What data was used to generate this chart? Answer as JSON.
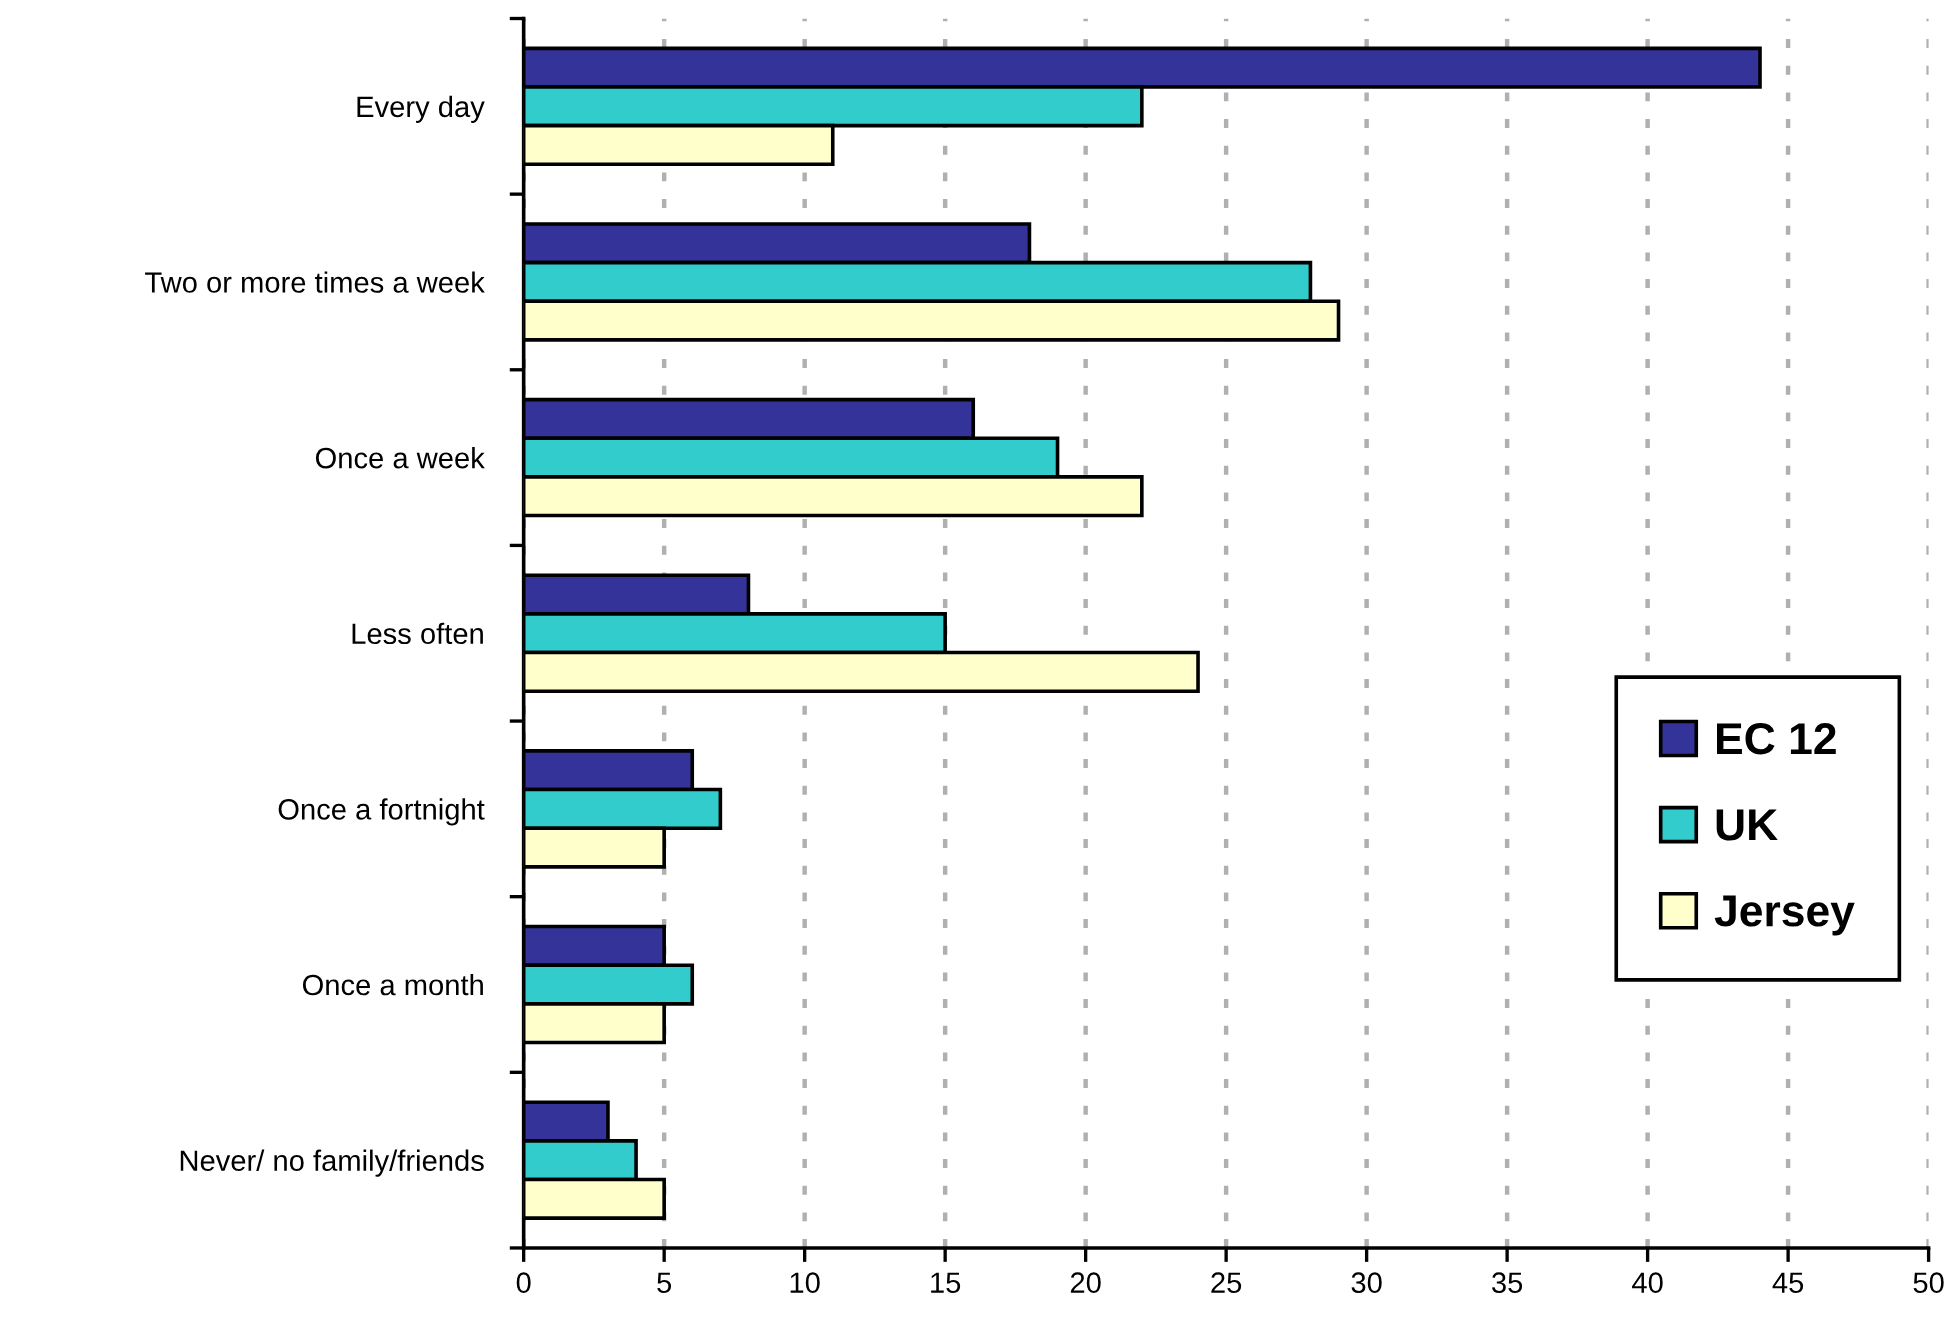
{
  "chart_data": {
    "type": "bar",
    "orientation": "horizontal",
    "categories": [
      "Every day",
      "Two or more times a week",
      "Once a week",
      "Less often",
      "Once a fortnight",
      "Once a month",
      "Never/ no family/friends"
    ],
    "series": [
      {
        "name": "EC 12",
        "color": "#333399",
        "values": [
          44,
          18,
          16,
          8,
          6,
          5,
          3
        ]
      },
      {
        "name": "UK",
        "color": "#33cccc",
        "values": [
          22,
          28,
          19,
          15,
          7,
          6,
          4
        ]
      },
      {
        "name": "Jersey",
        "color": "#ffffcc",
        "values": [
          11,
          29,
          22,
          24,
          5,
          5,
          5
        ]
      }
    ],
    "xlim": [
      0,
      50
    ],
    "xticks": [
      0,
      5,
      10,
      15,
      20,
      25,
      30,
      35,
      40,
      45,
      50
    ],
    "grid": "x",
    "legend": "bottom right"
  }
}
